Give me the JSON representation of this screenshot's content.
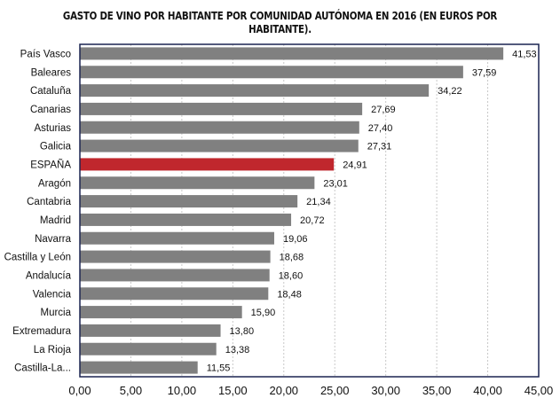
{
  "chart_data": {
    "type": "bar",
    "orientation": "horizontal",
    "title": "GASTO DE VINO POR HABITANTE POR COMUNIDAD AUTÓNOMA EN 2016 (EN EUROS POR HABITANTE).",
    "categories": [
      "País Vasco",
      "Baleares",
      "Cataluña",
      "Canarias",
      "Asturias",
      "Galicia",
      "ESPAÑA",
      "Aragón",
      "Cantabria",
      "Madrid",
      "Navarra",
      "Castilla y León",
      "Andalucía",
      "Valencia",
      "Murcia",
      "Extremadura",
      "La Rioja",
      "Castilla-La..."
    ],
    "values": [
      41.53,
      37.59,
      34.22,
      27.69,
      27.4,
      27.31,
      24.91,
      23.01,
      21.34,
      20.72,
      19.06,
      18.68,
      18.6,
      18.48,
      15.9,
      13.8,
      13.38,
      11.55
    ],
    "value_labels": [
      "41,53",
      "37,59",
      "34,22",
      "27,69",
      "27,40",
      "27,31",
      "24,91",
      "23,01",
      "21,34",
      "20,72",
      "19,06",
      "18,68",
      "18,60",
      "18,48",
      "15,90",
      "13,80",
      "13,38",
      "11,55"
    ],
    "xlim": [
      0,
      45
    ],
    "xticks": [
      "0,00",
      "5,00",
      "10,00",
      "15,00",
      "20,00",
      "25,00",
      "30,00",
      "35,00",
      "40,00",
      "45,00"
    ],
    "grid": true,
    "colors": {
      "bar": "#808080",
      "highlight": "#c0272d",
      "frame": "#1a2350"
    },
    "highlight_category": "ESPAÑA"
  }
}
